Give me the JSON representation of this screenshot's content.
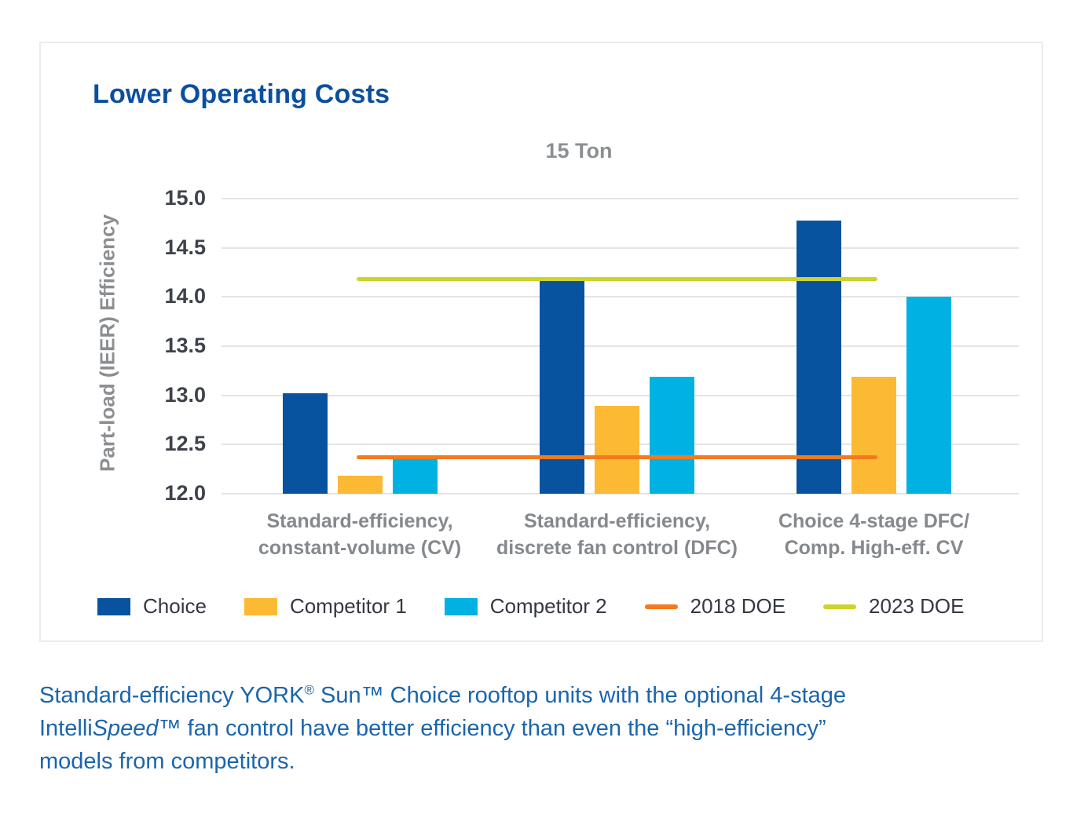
{
  "chart_data": {
    "type": "bar",
    "title": "Lower Operating Costs",
    "subtitle": "15 Ton",
    "ylabel": "Part-load (IEER) Efficiency",
    "ylim": [
      12.0,
      15.0
    ],
    "ytick_step": 0.5,
    "grid": true,
    "legend_position": "bottom",
    "categories": [
      "Standard-efficiency,\nconstant-volume (CV)",
      "Standard-efficiency,\ndiscrete fan control (DFC)",
      "Choice 4-stage DFC/\nComp. High-eff. CV"
    ],
    "series": [
      {
        "name": "Choice",
        "color": "#0853a0",
        "values": [
          13.02,
          14.17,
          14.78
        ]
      },
      {
        "name": "Competitor 1",
        "color": "#fcb933",
        "values": [
          12.18,
          12.89,
          13.19
        ]
      },
      {
        "name": "Competitor 2",
        "color": "#00b2e3",
        "values": [
          12.36,
          13.19,
          14.0
        ]
      }
    ],
    "ref_lines": [
      {
        "name": "2018 DOE",
        "color": "#f5791d",
        "value": 12.37
      },
      {
        "name": "2023 DOE",
        "color": "#ccd32c",
        "value": 14.18
      }
    ]
  },
  "colors": {
    "title_blue": "#0b4f9f",
    "caption_blue": "#1a65ad",
    "axis_gray": "#8c8f92",
    "tick_dark": "#3e424b",
    "gridline": "#e5e5e5"
  },
  "caption": {
    "line1_pre": "Standard-efficiency YORK",
    "line1_reg": "®",
    "line1_post": " Sun™ Choice rooftop units with the optional 4-stage",
    "line2_pre": "Intelli",
    "line2_italic": "Speed",
    "line2_post": "™ fan control have better efficiency than even the “high-efficiency”",
    "line3": "models from competitors."
  }
}
